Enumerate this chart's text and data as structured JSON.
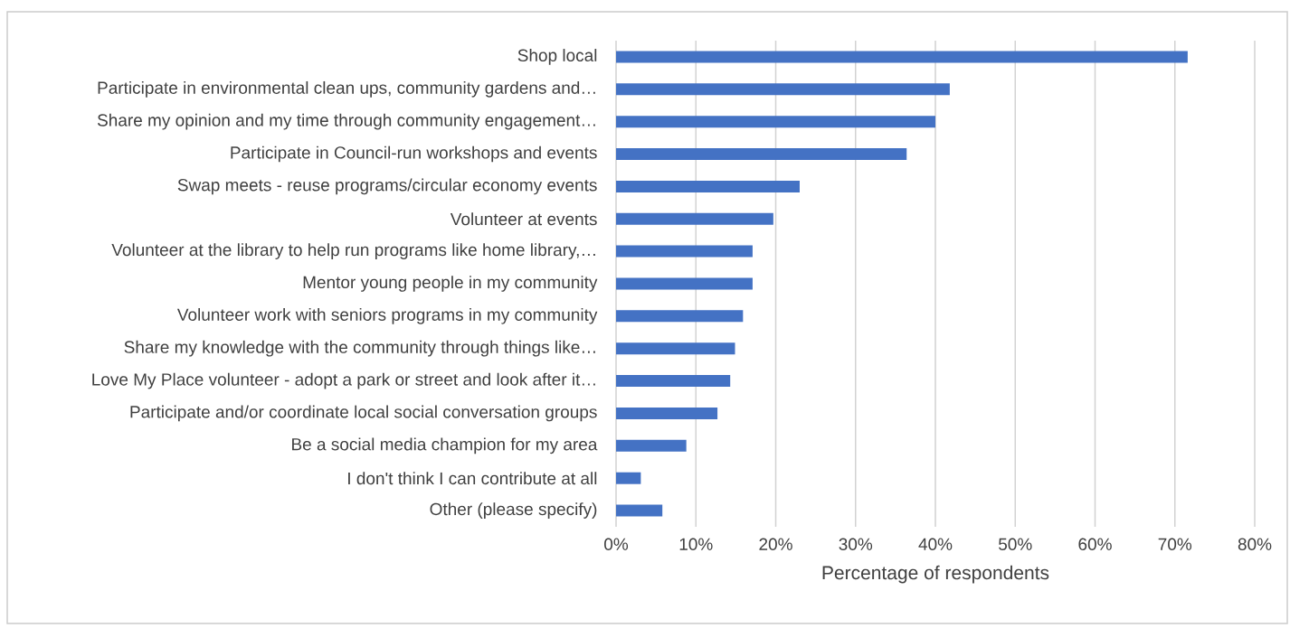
{
  "chart_data": {
    "type": "bar",
    "orientation": "horizontal",
    "xlabel": "Percentage of respondents",
    "categories": [
      "Shop local",
      "Participate in environmental clean ups, community gardens and…",
      "Share my opinion and my time through community engagement…",
      "Participate in Council-run workshops and events",
      "Swap meets - reuse programs/circular economy events",
      "Volunteer at events",
      "Volunteer at the library to help run programs like home library,…",
      "Mentor young people in my community",
      "Volunteer work with seniors programs in my community",
      "Share my knowledge with the community through things like…",
      "Love My Place volunteer - adopt a park or street and look after it…",
      "Participate and/or coordinate local social conversation groups",
      "Be a social media champion for my area",
      "I don't think I can contribute at all",
      "Other (please specify)"
    ],
    "values": [
      71.6,
      41.8,
      40.0,
      36.4,
      23.0,
      19.7,
      17.1,
      17.1,
      15.9,
      14.9,
      14.3,
      12.7,
      8.8,
      3.1,
      5.8
    ],
    "color": "#4472c4",
    "xlim": [
      0,
      80
    ],
    "xticks": [
      {
        "value": 0,
        "label": "0%"
      },
      {
        "value": 10,
        "label": "10%"
      },
      {
        "value": 20,
        "label": "20%"
      },
      {
        "value": 30,
        "label": "30%"
      },
      {
        "value": 40,
        "label": "40%"
      },
      {
        "value": 50,
        "label": "50%"
      },
      {
        "value": 60,
        "label": "60%"
      },
      {
        "value": 70,
        "label": "70%"
      },
      {
        "value": 80,
        "label": "80%"
      }
    ],
    "grid": "x"
  }
}
